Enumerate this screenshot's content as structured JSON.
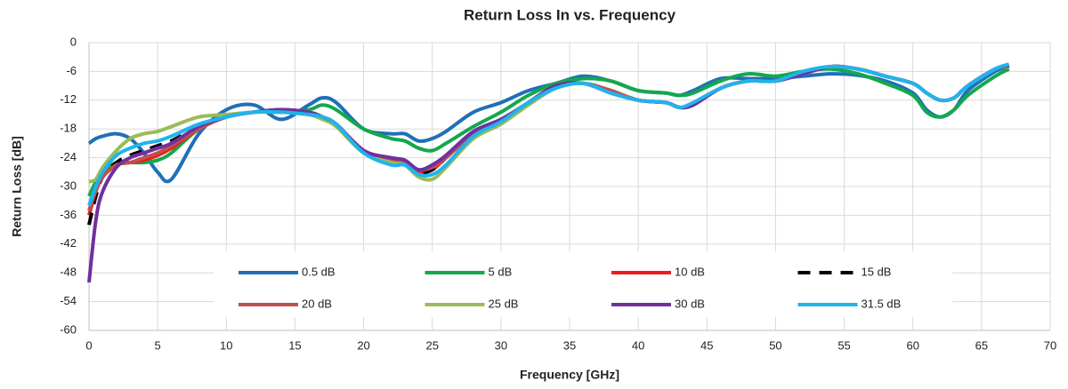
{
  "chart_data": {
    "type": "line",
    "title": "Return Loss In vs. Frequency",
    "x_label": "Frequency [GHz]",
    "y_label": "Return Loss [dB]",
    "xlim": [
      0,
      70
    ],
    "xticks": [
      0,
      5,
      10,
      15,
      20,
      25,
      30,
      35,
      40,
      45,
      50,
      55,
      60,
      65,
      70
    ],
    "ylim": [
      -60,
      0
    ],
    "yticks": [
      0,
      -6,
      -12,
      -18,
      -24,
      -30,
      -36,
      -42,
      -48,
      -54,
      -60
    ],
    "grid": true,
    "legend": "bottom",
    "smooth": true,
    "x": [
      0,
      0.5,
      1,
      2,
      3,
      4,
      5,
      6,
      8,
      10,
      12,
      14,
      16,
      17,
      18,
      20,
      22,
      23,
      24,
      25,
      26,
      28,
      30,
      32,
      34,
      36,
      38,
      40,
      42,
      43,
      44,
      46,
      48,
      50,
      52,
      54,
      56,
      58,
      60,
      61,
      62,
      63,
      64,
      66,
      67
    ],
    "series": [
      {
        "name": "0.5 dB",
        "color": "#1f6fb8",
        "dashed": false,
        "values": [
          -21,
          -20,
          -19.5,
          -19,
          -20,
          -23,
          -27,
          -28.5,
          -19,
          -14,
          -13,
          -16,
          -13,
          -11.5,
          -12.5,
          -18,
          -19,
          -19,
          -20.5,
          -20,
          -18.5,
          -14.5,
          -12.5,
          -10,
          -8.5,
          -7,
          -8,
          -10,
          -10.5,
          -11,
          -10,
          -7.5,
          -7.5,
          -7.5,
          -7,
          -6.5,
          -6.8,
          -8,
          -10.5,
          -14,
          -15.5,
          -14,
          -10,
          -6,
          -5
        ]
      },
      {
        "name": "5 dB",
        "color": "#13a84d",
        "dashed": false,
        "values": [
          -32,
          -29,
          -27,
          -25,
          -25,
          -25,
          -24.5,
          -23,
          -18,
          -15.5,
          -14.5,
          -14.5,
          -14,
          -13,
          -14,
          -18,
          -20,
          -20.5,
          -22,
          -22.5,
          -21,
          -17.5,
          -14.5,
          -11,
          -8.5,
          -7.5,
          -8,
          -10,
          -10.5,
          -11,
          -10.5,
          -8,
          -6.5,
          -7,
          -6,
          -5.5,
          -6.5,
          -8.5,
          -11,
          -14.5,
          -15.5,
          -14,
          -11,
          -7,
          -5.5
        ]
      },
      {
        "name": "10 dB",
        "color": "#ee1c1c",
        "dashed": false,
        "values": [
          -36,
          -31,
          -28,
          -25.5,
          -25,
          -24.5,
          -23.5,
          -22,
          -18,
          -15.5,
          -14.5,
          -14,
          -14.5,
          -15.5,
          -17,
          -22.5,
          -24.5,
          -25,
          -27,
          -26.5,
          -24,
          -19,
          -16.5,
          -12.5,
          -9,
          -8.5,
          -10,
          -12,
          -12.5,
          -13.5,
          -13,
          -9.5,
          -8,
          -8,
          -6.5,
          -5,
          -5.5,
          -7,
          -8.5,
          -10.5,
          -12,
          -11.5,
          -9,
          -5.5,
          -5
        ]
      },
      {
        "name": "15 dB",
        "color": "#000000",
        "dashed": true,
        "values": [
          -38,
          -32,
          -28,
          -25,
          -23.5,
          -22.5,
          -21.5,
          -20.5,
          -17.5,
          -15.5,
          -14.5,
          -14,
          -14.5,
          -15.5,
          -17,
          -22.5,
          -24.5,
          -25,
          -27,
          -26.5,
          -24,
          -19,
          -16.5,
          -12.5,
          -9,
          -8.5,
          -10,
          -12,
          -12.5,
          -13.5,
          -13,
          -9.5,
          -8,
          -8,
          -6.5,
          -5,
          -5.5,
          -7,
          -8.5,
          -10.5,
          -12,
          -11.5,
          -9,
          -5.5,
          -4.8
        ]
      },
      {
        "name": "20 dB",
        "color": "#c0504d",
        "dashed": false,
        "values": [
          -35,
          -31,
          -28,
          -25.5,
          -25,
          -24,
          -23,
          -21.5,
          -18,
          -15.5,
          -14.5,
          -14,
          -14.5,
          -15.5,
          -17,
          -22.5,
          -24.5,
          -25,
          -26.5,
          -26,
          -24,
          -19,
          -16.5,
          -12.5,
          -9,
          -8.5,
          -10,
          -12,
          -12.5,
          -13.5,
          -13,
          -9.5,
          -8,
          -8,
          -6.5,
          -5,
          -5.5,
          -7,
          -8.5,
          -10.5,
          -12,
          -11.5,
          -9,
          -5.5,
          -5
        ]
      },
      {
        "name": "25 dB",
        "color": "#9bbb59",
        "dashed": false,
        "values": [
          -29,
          -28.5,
          -26,
          -22.5,
          -20,
          -19,
          -18.5,
          -17.5,
          -15.5,
          -15,
          -14.5,
          -14.5,
          -15,
          -16,
          -17.5,
          -23,
          -25,
          -25.5,
          -28,
          -28.5,
          -26,
          -20,
          -17,
          -13,
          -9.5,
          -8.5,
          -10.5,
          -12,
          -12.5,
          -13.5,
          -13,
          -9.5,
          -8,
          -8,
          -6.5,
          -5,
          -5.5,
          -7,
          -8.5,
          -10.5,
          -12,
          -11.5,
          -9,
          -5.5,
          -5
        ]
      },
      {
        "name": "30 dB",
        "color": "#7030a0",
        "dashed": false,
        "values": [
          -50,
          -37,
          -31,
          -26,
          -24,
          -23,
          -22,
          -21,
          -17.5,
          -15.5,
          -14.5,
          -14,
          -14.5,
          -15.5,
          -17,
          -22.5,
          -24,
          -24.5,
          -26.5,
          -25.5,
          -23.5,
          -18.5,
          -16,
          -12.5,
          -9,
          -8.5,
          -10.5,
          -12,
          -12.5,
          -13.5,
          -13,
          -9.5,
          -8,
          -8,
          -6.5,
          -5,
          -5.5,
          -7,
          -8.5,
          -10.5,
          -12,
          -11.5,
          -9,
          -5.5,
          -4.8
        ]
      },
      {
        "name": "31.5 dB",
        "color": "#1fb4ee",
        "dashed": false,
        "values": [
          -34,
          -30,
          -27,
          -23.5,
          -22,
          -21,
          -20.5,
          -19.5,
          -17,
          -15.5,
          -14.5,
          -14.5,
          -15,
          -15.5,
          -17,
          -23,
          -25.5,
          -25.5,
          -27.5,
          -27.5,
          -25.5,
          -19.5,
          -16.5,
          -12.5,
          -9.5,
          -8.5,
          -10.5,
          -12,
          -12.5,
          -13.5,
          -12.5,
          -9.5,
          -8,
          -8,
          -6,
          -5,
          -5.5,
          -7,
          -8.5,
          -10.5,
          -12,
          -11.5,
          -9,
          -5.5,
          -4.5
        ]
      }
    ]
  }
}
